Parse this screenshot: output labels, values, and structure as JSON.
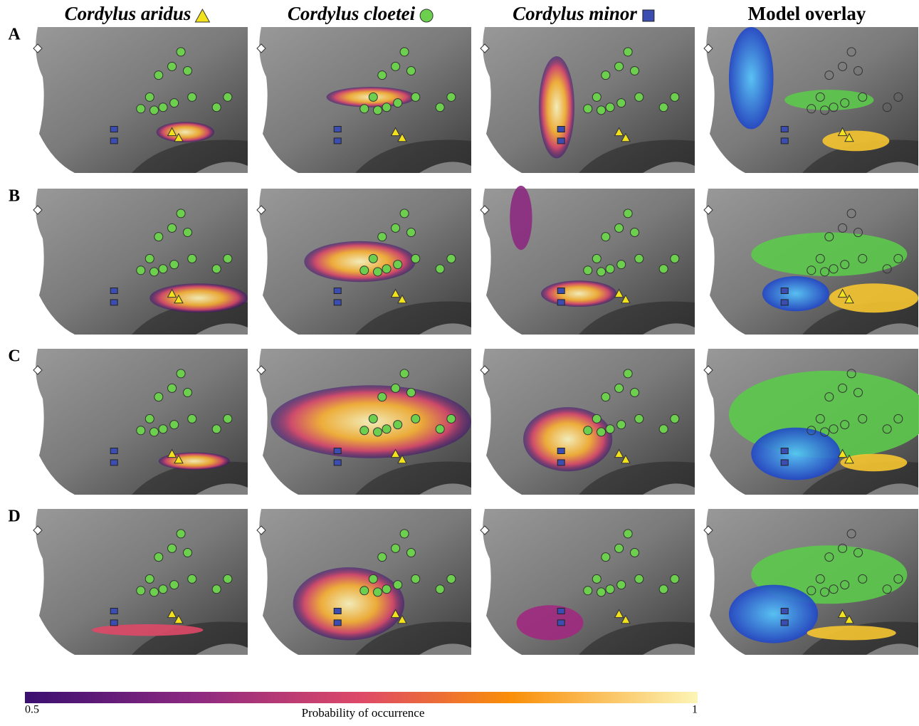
{
  "columns": [
    {
      "title": "Cordylus aridus"
    },
    {
      "title": "Cordylus cloetei"
    },
    {
      "title": "Cordylus minor"
    },
    {
      "title": "Model overlay"
    }
  ],
  "rows": [
    "A",
    "B",
    "C",
    "D"
  ],
  "colorbar": {
    "min_label": "0.5",
    "max_label": "1",
    "title": "Probability of occurrence"
  }
}
